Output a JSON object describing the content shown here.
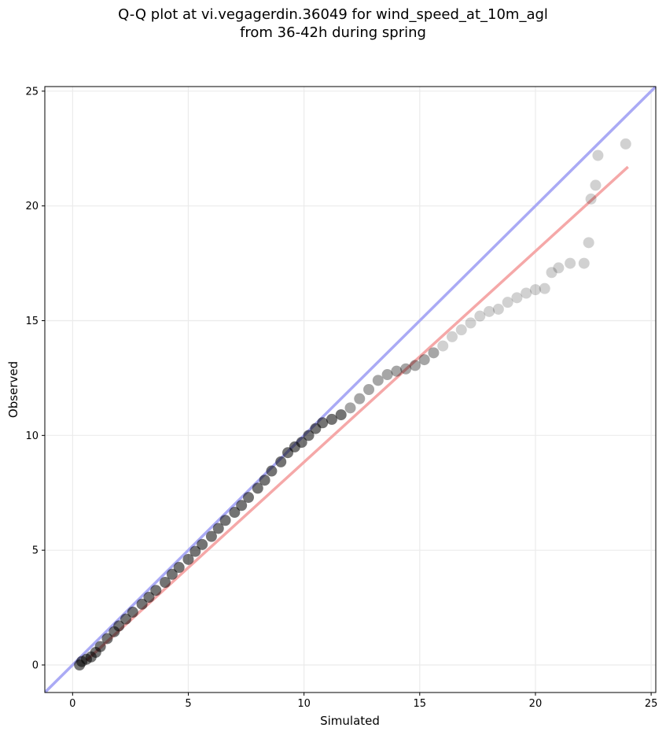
{
  "chart_data": {
    "type": "scatter",
    "title_line1": "Q-Q plot at vi.vegagerdin.36049 for wind_speed_at_10m_agl",
    "title_line2": "from 36-42h during spring",
    "xlabel": "Simulated",
    "ylabel": "Observed",
    "xlim": [
      -1.2,
      25.2
    ],
    "ylim": [
      -1.2,
      25.2
    ],
    "xticks": [
      "0",
      "5",
      "10",
      "15",
      "20",
      "25"
    ],
    "yticks": [
      "0",
      "5",
      "10",
      "15",
      "20",
      "25"
    ],
    "grid": true,
    "colors": {
      "points": "#000000",
      "identity_line": "#aaaaf5",
      "fit_line": "#f5a8a8"
    },
    "identity_line": {
      "x": [
        -1.2,
        25.2
      ],
      "y": [
        -1.2,
        25.2
      ]
    },
    "fit_line": {
      "x": [
        0.6,
        24.0
      ],
      "y": [
        0.2,
        21.7
      ]
    },
    "points": {
      "x": [
        0.3,
        0.4,
        0.6,
        0.8,
        1.0,
        1.2,
        1.5,
        1.8,
        2.0,
        2.3,
        2.6,
        3.0,
        3.3,
        3.6,
        4.0,
        4.3,
        4.6,
        5.0,
        5.3,
        5.6,
        6.0,
        6.3,
        6.6,
        7.0,
        7.3,
        7.6,
        8.0,
        8.3,
        8.6,
        9.0,
        9.3,
        9.6,
        9.9,
        10.2,
        10.5,
        10.8,
        11.2,
        11.6,
        12.0,
        12.4,
        12.8,
        13.2,
        13.6,
        14.0,
        14.4,
        14.8,
        15.2,
        15.6,
        16.0,
        16.4,
        16.8,
        17.2,
        17.6,
        18.0,
        18.4,
        18.8,
        19.2,
        19.6,
        20.0,
        20.4,
        20.7,
        21.0,
        21.5,
        22.1,
        22.3,
        22.4,
        22.6,
        22.7,
        23.9
      ],
      "y": [
        0.0,
        0.15,
        0.25,
        0.35,
        0.55,
        0.8,
        1.15,
        1.45,
        1.7,
        2.0,
        2.3,
        2.65,
        2.95,
        3.25,
        3.6,
        3.95,
        4.25,
        4.6,
        4.95,
        5.25,
        5.6,
        5.95,
        6.3,
        6.65,
        6.95,
        7.3,
        7.7,
        8.05,
        8.45,
        8.85,
        9.25,
        9.5,
        9.7,
        10.0,
        10.3,
        10.55,
        10.7,
        10.9,
        11.2,
        11.6,
        12.0,
        12.4,
        12.65,
        12.8,
        12.9,
        13.05,
        13.3,
        13.6,
        13.9,
        14.3,
        14.6,
        14.9,
        15.2,
        15.4,
        15.5,
        15.8,
        16.0,
        16.2,
        16.35,
        16.4,
        17.1,
        17.3,
        17.5,
        17.5,
        18.4,
        20.3,
        20.9,
        22.2,
        22.7
      ]
    }
  }
}
